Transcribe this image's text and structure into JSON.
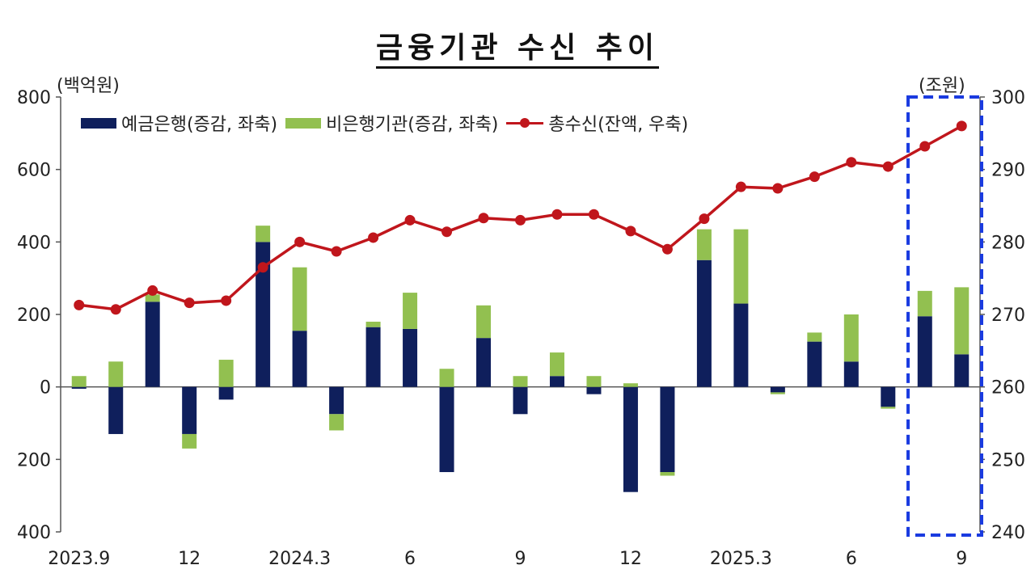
{
  "title": "금융기관 수신 추이",
  "left_unit": "(백억원)",
  "right_unit": "(조원)",
  "legend": {
    "bank": "예금은행(증감, 좌축)",
    "nonbank": "비은행기관(증감, 좌축)",
    "total": "총수신(잔액, 우축)"
  },
  "colors": {
    "bank": "#0f1f5c",
    "nonbank": "#92c050",
    "total": "#c0161c",
    "highlight": "#1a3be0"
  },
  "chart_data": {
    "type": "bar",
    "categories": [
      "2023.9",
      "",
      "",
      "12",
      "",
      "",
      "2024.3",
      "",
      "",
      "6",
      "",
      "",
      "9",
      "",
      "",
      "12",
      "",
      "",
      "2025.3",
      "",
      "",
      "6",
      "",
      "",
      "9"
    ],
    "x_tick_labels": [
      "2023.9",
      "12",
      "2024.3",
      "6",
      "9",
      "12",
      "2025.3",
      "6",
      "9"
    ],
    "stacked": true,
    "series": [
      {
        "name": "예금은행(증감, 좌축)",
        "axis": "left",
        "values": [
          -5,
          -130,
          235,
          -130,
          -35,
          400,
          155,
          -75,
          165,
          160,
          -235,
          135,
          -75,
          30,
          -20,
          -290,
          -235,
          350,
          230,
          -15,
          125,
          70,
          -55,
          195,
          90
        ]
      },
      {
        "name": "비은행기관(증감, 좌축)",
        "axis": "left",
        "values": [
          30,
          70,
          20,
          -40,
          75,
          45,
          175,
          -45,
          15,
          100,
          50,
          90,
          30,
          65,
          30,
          10,
          -10,
          85,
          205,
          -5,
          25,
          130,
          -5,
          70,
          185
        ]
      },
      {
        "name": "총수신(잔액, 우축)",
        "axis": "right",
        "type": "line",
        "values": [
          271.3,
          270.7,
          273.3,
          271.6,
          271.9,
          276.5,
          280.0,
          278.7,
          280.6,
          283.0,
          281.4,
          283.3,
          283.0,
          283.8,
          283.8,
          281.5,
          279.0,
          283.2,
          287.6,
          287.4,
          289.0,
          291.0,
          290.4,
          293.2,
          296.0
        ]
      }
    ],
    "y_left": {
      "min": -400,
      "max": 800,
      "ticks": [
        800,
        600,
        400,
        200,
        0,
        -200,
        -400
      ],
      "tick_labels": [
        "800",
        "600",
        "400",
        "200",
        "0",
        "200",
        "400"
      ]
    },
    "y_right": {
      "min": 240,
      "max": 300,
      "ticks": [
        300,
        290,
        280,
        270,
        260,
        250,
        240
      ],
      "tick_labels": [
        "300",
        "290",
        "280",
        "270",
        "260",
        "250",
        "240"
      ]
    },
    "highlight_last_n": 2,
    "grid": false,
    "legend_position": "top-left"
  }
}
